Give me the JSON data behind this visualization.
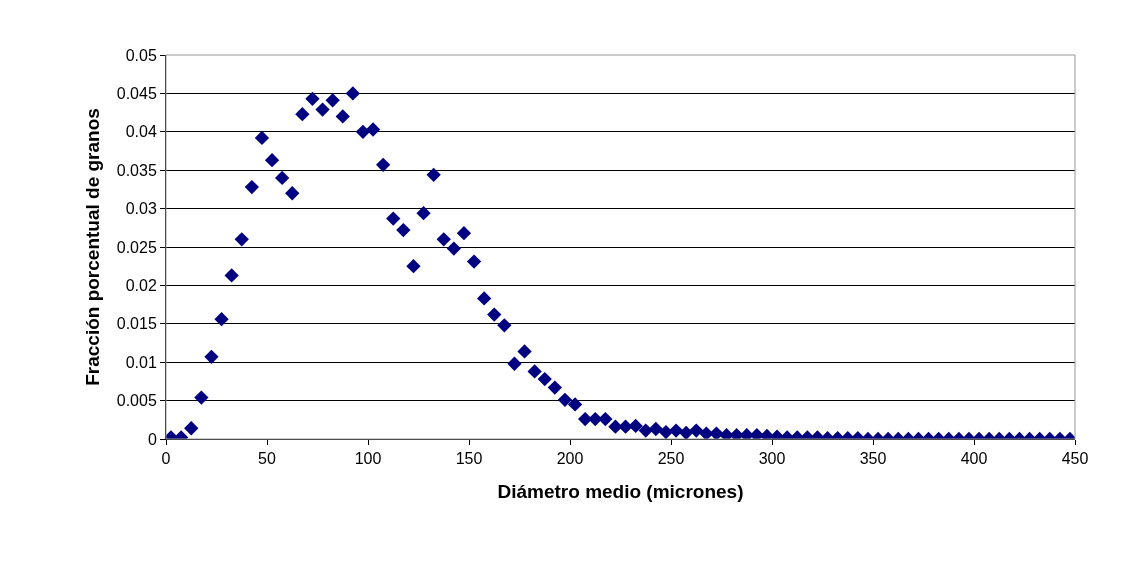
{
  "chart_data": {
    "type": "scatter",
    "xlabel": "Diámetro medio (micrones)",
    "ylabel": "Fracción porcentual de granos",
    "x": [
      2.5,
      7.5,
      12.5,
      17.5,
      22.5,
      27.5,
      32.5,
      37.5,
      42.5,
      47.5,
      52.5,
      57.5,
      62.5,
      67.5,
      72.5,
      77.5,
      82.5,
      87.5,
      92.5,
      97.5,
      102.5,
      107.5,
      112.5,
      117.5,
      122.5,
      127.5,
      132.5,
      137.5,
      142.5,
      147.5,
      152.5,
      157.5,
      162.5,
      167.5,
      172.5,
      177.5,
      182.5,
      187.5,
      192.5,
      197.5,
      202.5,
      207.5,
      212.5,
      217.5,
      222.5,
      227.5,
      232.5,
      237.5,
      242.5,
      247.5,
      252.5,
      257.5,
      262.5,
      267.5,
      272.5,
      277.5,
      282.5,
      287.5,
      292.5,
      297.5,
      302.5,
      307.5,
      312.5,
      317.5,
      322.5,
      327.5,
      332.5,
      337.5,
      342.5,
      347.5,
      352.5,
      357.5,
      362.5,
      367.5,
      372.5,
      377.5,
      382.5,
      387.5,
      392.5,
      397.5,
      402.5,
      407.5,
      412.5,
      417.5,
      422.5,
      427.5,
      432.5,
      437.5,
      442.5,
      447.5
    ],
    "series": [
      {
        "color": "#000080",
        "values": [
          0.0002,
          0.0002,
          0.0014,
          0.0054,
          0.0107,
          0.0156,
          0.0213,
          0.026,
          0.0328,
          0.0392,
          0.0363,
          0.034,
          0.032,
          0.0423,
          0.0443,
          0.0429,
          0.0441,
          0.042,
          0.045,
          0.04,
          0.0403,
          0.0357,
          0.0287,
          0.0272,
          0.0225,
          0.0294,
          0.0344,
          0.026,
          0.0248,
          0.0268,
          0.0231,
          0.0183,
          0.0162,
          0.0148,
          0.0098,
          0.0114,
          0.0088,
          0.0078,
          0.0067,
          0.0051,
          0.0045,
          0.0026,
          0.0026,
          0.0026,
          0.0016,
          0.0016,
          0.0017,
          0.0011,
          0.0013,
          0.0009,
          0.0011,
          0.0008,
          0.0011,
          0.0007,
          0.0007,
          0.0005,
          0.0005,
          0.0005,
          0.0005,
          0.0004,
          0.0003,
          0.0002,
          0.0002,
          0.0002,
          0.0002,
          0.0001,
          0.0001,
          0.0001,
          0.0001,
          0,
          0,
          0,
          0,
          0,
          0,
          0,
          0,
          0,
          0,
          0,
          0,
          0,
          0,
          0,
          0,
          0,
          0,
          0,
          0,
          0
        ]
      }
    ],
    "xlim": [
      0,
      450
    ],
    "xticks": [
      0,
      50,
      100,
      150,
      200,
      250,
      300,
      350,
      400,
      450
    ],
    "ylim": [
      0,
      0.05
    ],
    "yticks": [
      0,
      0.005,
      0.01,
      0.015,
      0.02,
      0.025,
      0.03,
      0.035,
      0.04,
      0.045,
      0.05
    ],
    "grid": "y",
    "marker": "diamond"
  }
}
